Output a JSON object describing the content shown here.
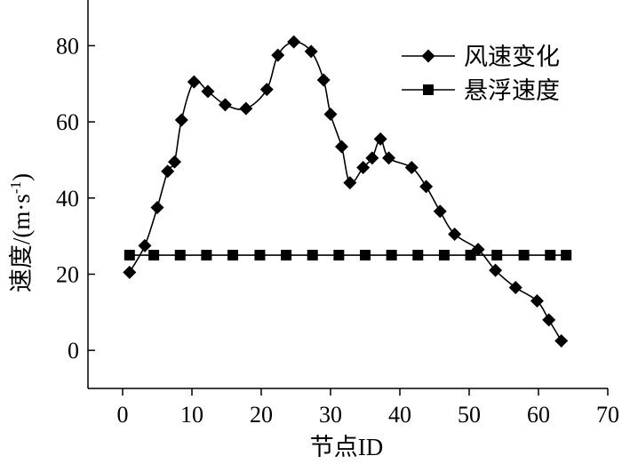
{
  "chart_data": {
    "type": "line",
    "xlabel": "节点ID",
    "ylabel_main": "速度/(m·s",
    "ylabel_sup": "-1",
    "ylabel_close": ")",
    "xlim": [
      -5,
      70
    ],
    "ylim": [
      -10,
      92
    ],
    "x_ticks": [
      0,
      10,
      20,
      30,
      40,
      50,
      60,
      70
    ],
    "y_ticks": [
      0,
      20,
      40,
      60,
      80
    ],
    "x_tick_labels": [
      "0",
      "10",
      "20",
      "30",
      "40",
      "50",
      "60",
      "70"
    ],
    "y_tick_labels": [
      "0",
      "20",
      "40",
      "60",
      "80"
    ],
    "grid": false,
    "legend_position": "top-right",
    "series": [
      {
        "name": "风速变化",
        "marker": "diamond",
        "color": "#000000",
        "x": [
          1,
          3.2,
          5,
          6.5,
          7.5,
          8.5,
          10.3,
          12.3,
          14.8,
          17.8,
          20.8,
          22.4,
          24.7,
          27.2,
          29,
          30,
          31.6,
          32.8,
          34.7,
          36,
          37.2,
          38.4,
          41.7,
          43.8,
          45.8,
          47.9,
          51.3,
          53.8,
          56.7,
          59.8,
          61.5,
          63.3
        ],
        "y": [
          20.5,
          27.5,
          37.5,
          47,
          49.5,
          60.5,
          70.5,
          68,
          64.5,
          63.5,
          68.5,
          77.5,
          81,
          78.5,
          71,
          62,
          53.5,
          44,
          48,
          50.5,
          55.5,
          50.5,
          48,
          43,
          36.5,
          30.5,
          26.5,
          21,
          16.5,
          13,
          8,
          2.5
        ]
      },
      {
        "name": "悬浮速度",
        "marker": "square",
        "color": "#000000",
        "x": [
          1,
          4.5,
          8.3,
          12.1,
          15.9,
          19.8,
          23.6,
          27.4,
          31.2,
          35,
          38.8,
          42.6,
          46.4,
          50.2,
          54,
          57.9,
          61.7,
          64
        ],
        "y": [
          25,
          25,
          25,
          25,
          25,
          25,
          25,
          25,
          25,
          25,
          25,
          25,
          25,
          25,
          25,
          25,
          25,
          25
        ]
      }
    ]
  }
}
